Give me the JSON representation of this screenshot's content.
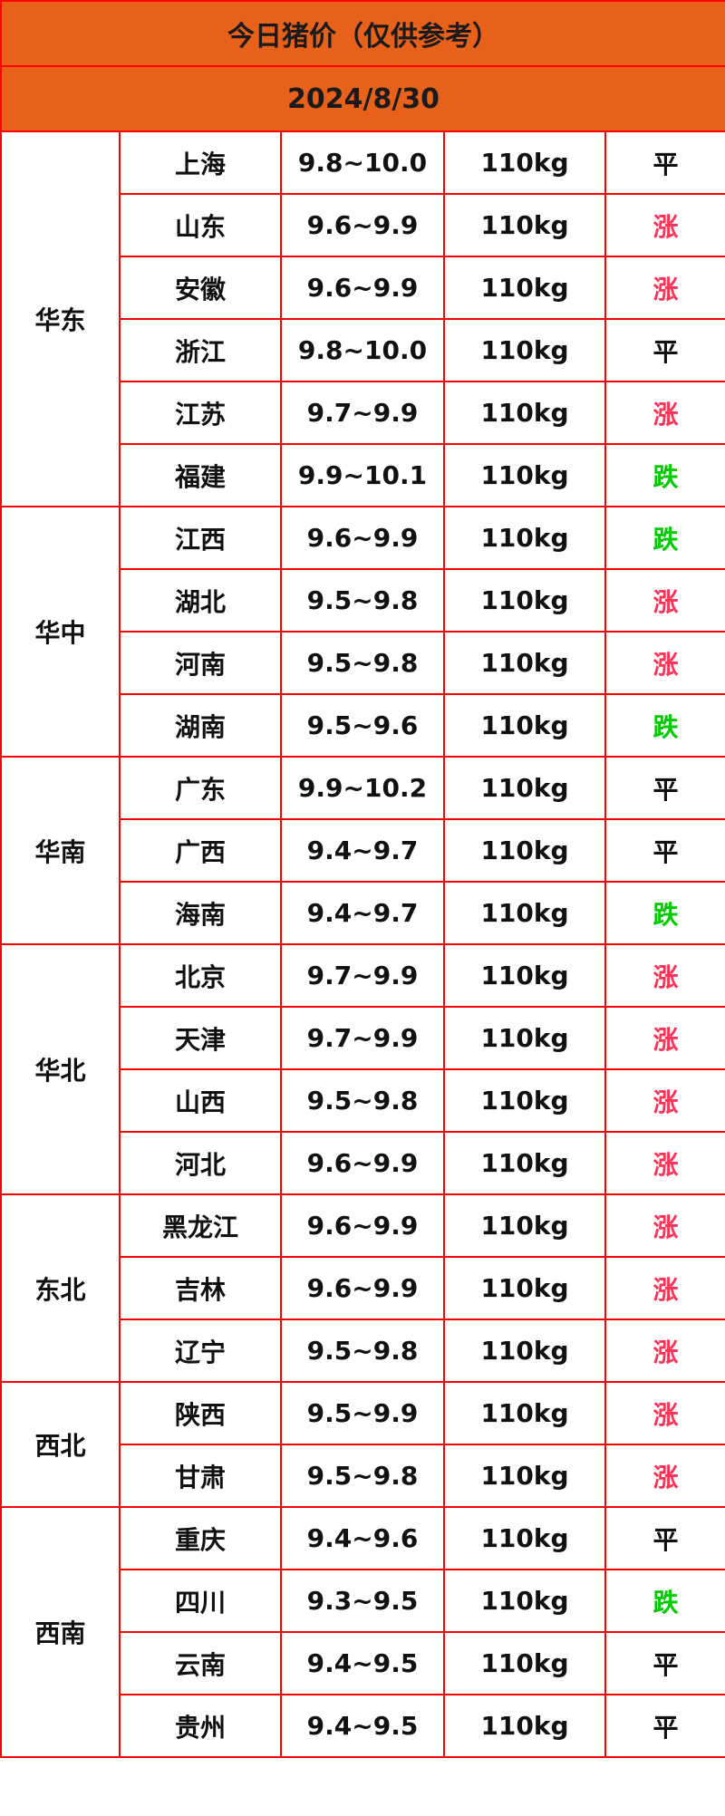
{
  "title": "今日猪价（仅供参考）",
  "date": "2024/8/30",
  "colors": {
    "header_bg": "#e8611a",
    "border": "#ff0000",
    "up": "#ff3355",
    "down": "#00cc00",
    "flat": "#111111"
  },
  "regions": [
    {
      "name": "华东",
      "rows": [
        {
          "province": "上海",
          "price": "9.8~10.0",
          "weight": "110kg",
          "trend": "平"
        },
        {
          "province": "山东",
          "price": "9.6~9.9",
          "weight": "110kg",
          "trend": "涨"
        },
        {
          "province": "安徽",
          "price": "9.6~9.9",
          "weight": "110kg",
          "trend": "涨"
        },
        {
          "province": "浙江",
          "price": "9.8~10.0",
          "weight": "110kg",
          "trend": "平"
        },
        {
          "province": "江苏",
          "price": "9.7~9.9",
          "weight": "110kg",
          "trend": "涨"
        },
        {
          "province": "福建",
          "price": "9.9~10.1",
          "weight": "110kg",
          "trend": "跌"
        }
      ]
    },
    {
      "name": "华中",
      "rows": [
        {
          "province": "江西",
          "price": "9.6~9.9",
          "weight": "110kg",
          "trend": "跌"
        },
        {
          "province": "湖北",
          "price": "9.5~9.8",
          "weight": "110kg",
          "trend": "涨"
        },
        {
          "province": "河南",
          "price": "9.5~9.8",
          "weight": "110kg",
          "trend": "涨"
        },
        {
          "province": "湖南",
          "price": "9.5~9.6",
          "weight": "110kg",
          "trend": "跌"
        }
      ]
    },
    {
      "name": "华南",
      "rows": [
        {
          "province": "广东",
          "price": "9.9~10.2",
          "weight": "110kg",
          "trend": "平"
        },
        {
          "province": "广西",
          "price": "9.4~9.7",
          "weight": "110kg",
          "trend": "平"
        },
        {
          "province": "海南",
          "price": "9.4~9.7",
          "weight": "110kg",
          "trend": "跌"
        }
      ]
    },
    {
      "name": "华北",
      "rows": [
        {
          "province": "北京",
          "price": "9.7~9.9",
          "weight": "110kg",
          "trend": "涨"
        },
        {
          "province": "天津",
          "price": "9.7~9.9",
          "weight": "110kg",
          "trend": "涨"
        },
        {
          "province": "山西",
          "price": "9.5~9.8",
          "weight": "110kg",
          "trend": "涨"
        },
        {
          "province": "河北",
          "price": "9.6~9.9",
          "weight": "110kg",
          "trend": "涨"
        }
      ]
    },
    {
      "name": "东北",
      "rows": [
        {
          "province": "黑龙江",
          "price": "9.6~9.9",
          "weight": "110kg",
          "trend": "涨"
        },
        {
          "province": "吉林",
          "price": "9.6~9.9",
          "weight": "110kg",
          "trend": "涨"
        },
        {
          "province": "辽宁",
          "price": "9.5~9.8",
          "weight": "110kg",
          "trend": "涨"
        }
      ]
    },
    {
      "name": "西北",
      "rows": [
        {
          "province": "陕西",
          "price": "9.5~9.9",
          "weight": "110kg",
          "trend": "涨"
        },
        {
          "province": "甘肃",
          "price": "9.5~9.8",
          "weight": "110kg",
          "trend": "涨"
        }
      ]
    },
    {
      "name": "西南",
      "rows": [
        {
          "province": "重庆",
          "price": "9.4~9.6",
          "weight": "110kg",
          "trend": "平"
        },
        {
          "province": "四川",
          "price": "9.3~9.5",
          "weight": "110kg",
          "trend": "跌"
        },
        {
          "province": "云南",
          "price": "9.4~9.5",
          "weight": "110kg",
          "trend": "平"
        },
        {
          "province": "贵州",
          "price": "9.4~9.5",
          "weight": "110kg",
          "trend": "平"
        }
      ]
    }
  ]
}
